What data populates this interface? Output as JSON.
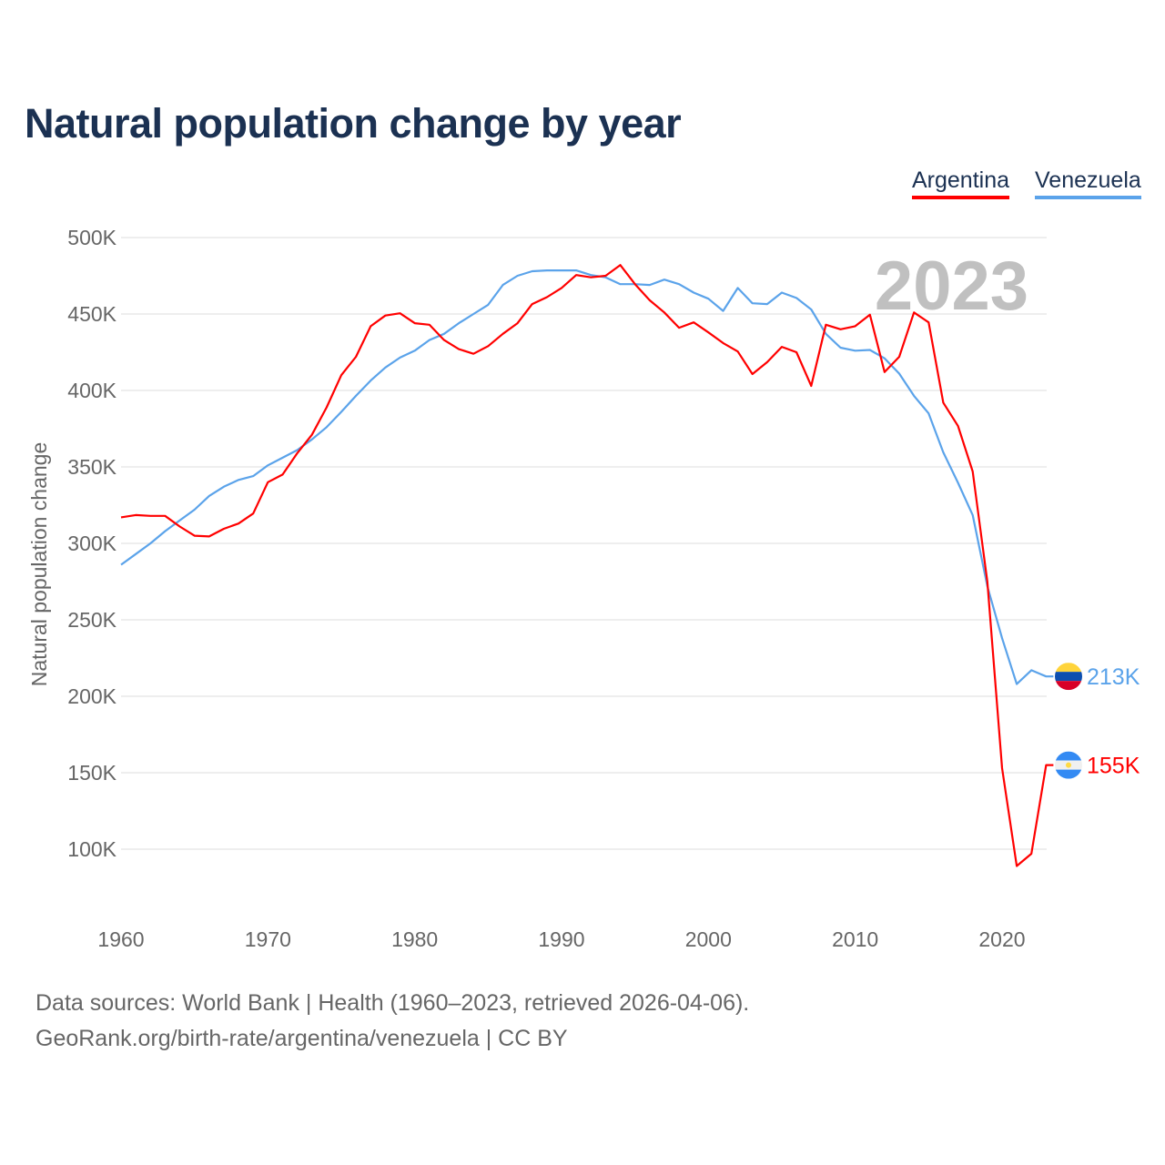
{
  "title": "Natural population change by year",
  "footer": {
    "line1": "Data sources: World Bank | Health (1960–2023, retrieved 2026-04-06).",
    "line2": "GeoRank.org/birth-rate/argentina/venezuela | CC BY"
  },
  "chart_data": {
    "type": "line",
    "title": "Natural population change by year",
    "xlabel": "",
    "ylabel": "Natural population change",
    "year_watermark": "2023",
    "xlim": [
      1960,
      2023
    ],
    "ylim": [
      60,
      500
    ],
    "y_unit": "thousands",
    "grid": true,
    "legend_placement": "top-right",
    "x_ticks": [
      "1960",
      "1970",
      "1980",
      "1990",
      "2000",
      "2010",
      "2020"
    ],
    "y_ticks": [
      {
        "value": 500,
        "label": "500K"
      },
      {
        "value": 450,
        "label": "450K"
      },
      {
        "value": 400,
        "label": "400K"
      },
      {
        "value": 350,
        "label": "350K"
      },
      {
        "value": 300,
        "label": "300K"
      },
      {
        "value": 250,
        "label": "250K"
      },
      {
        "value": 200,
        "label": "200K"
      },
      {
        "value": 150,
        "label": "150K"
      },
      {
        "value": 100,
        "label": "100K"
      }
    ],
    "x_start": 1960,
    "series": [
      {
        "name": "Argentina",
        "color": "#ff0000",
        "end_label": "155K",
        "flag": "argentina",
        "values": [
          317,
          318.5,
          318,
          318,
          311,
          305,
          304.5,
          309.5,
          313,
          319.5,
          340,
          345,
          359,
          371,
          389,
          410,
          422,
          442,
          449,
          450.5,
          444,
          443,
          433,
          427,
          424,
          429,
          437,
          444,
          456.5,
          461,
          467,
          475.5,
          474,
          475,
          482,
          469.5,
          459,
          451,
          441,
          444.5,
          438,
          431,
          425.5,
          410.7,
          418.5,
          428.5,
          425,
          403,
          443,
          440,
          442,
          449.5,
          412,
          422,
          451,
          444.5,
          392,
          376.7,
          347,
          275,
          153,
          89,
          97,
          155
        ]
      },
      {
        "name": "Venezuela",
        "color": "#5ba3ea",
        "end_label": "213K",
        "flag": "venezuela",
        "values": [
          286,
          293,
          300,
          308,
          315,
          322,
          331,
          337,
          341.5,
          344,
          351,
          356,
          361,
          368,
          376,
          386,
          396.5,
          406.5,
          415,
          421.5,
          426,
          433,
          437,
          444,
          450,
          456,
          469,
          475,
          478,
          478.5,
          478.5,
          478.5,
          475.5,
          474,
          469.5,
          469.5,
          469,
          472.5,
          469.5,
          464,
          460,
          452,
          467,
          457,
          456.5,
          464,
          460.5,
          453,
          437,
          428,
          426,
          426.5,
          421,
          411,
          396.5,
          385,
          359.5,
          339.6,
          318.5,
          272,
          238,
          208,
          217,
          213
        ]
      }
    ]
  }
}
